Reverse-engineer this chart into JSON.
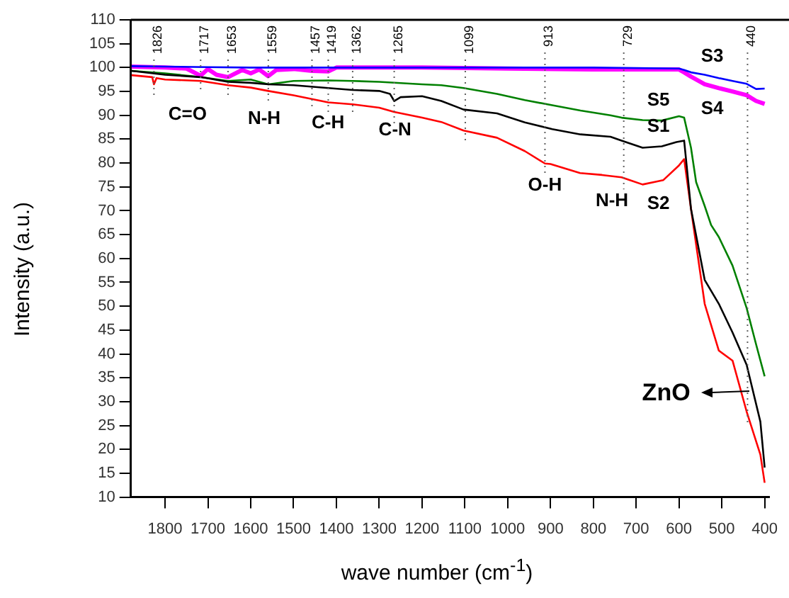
{
  "chart_data": {
    "type": "line",
    "xlabel": "wave number (cm$^{-1}$)",
    "ylabel": "Intensity (a.u.)",
    "xlim": [
      1880,
      390
    ],
    "xticks": [
      1800,
      1700,
      1600,
      1500,
      1400,
      1300,
      1200,
      1100,
      1000,
      900,
      800,
      700,
      600,
      500,
      400
    ],
    "ylim": [
      10,
      110
    ],
    "yticks": [
      10,
      15,
      20,
      25,
      30,
      35,
      40,
      45,
      50,
      55,
      60,
      65,
      70,
      75,
      80,
      85,
      90,
      95,
      100,
      105,
      110
    ],
    "grid": false,
    "legend": false,
    "marker": "none",
    "line_style": "solid",
    "series": [
      {
        "name": "S1",
        "color": "#000000",
        "x": [
          1878,
          1800,
          1717,
          1653,
          1600,
          1559,
          1500,
          1419,
          1362,
          1300,
          1275,
          1265,
          1250,
          1200,
          1155,
          1103,
          1025,
          960,
          896,
          830,
          760,
          734,
          685,
          640,
          606,
          588,
          572,
          540,
          507,
          475,
          442,
          410,
          400
        ],
        "values": [
          99.3,
          98.5,
          98,
          97,
          96.8,
          96.5,
          96.3,
          95.7,
          95.3,
          95.1,
          94.5,
          93,
          93.8,
          94,
          93,
          91.2,
          90.4,
          88.5,
          87.1,
          86,
          85.5,
          84.7,
          83.2,
          83.5,
          84.4,
          84.7,
          70.4,
          55.5,
          50.5,
          44.5,
          37.7,
          25.8,
          16.2
        ]
      },
      {
        "name": "S2",
        "color": "#ff0000",
        "x": [
          1878,
          1830,
          1826,
          1820,
          1800,
          1717,
          1653,
          1600,
          1559,
          1500,
          1419,
          1362,
          1300,
          1265,
          1200,
          1155,
          1103,
          1025,
          960,
          913,
          900,
          831,
          780,
          734,
          685,
          637,
          600,
          588,
          572,
          540,
          507,
          475,
          442,
          410,
          400
        ],
        "values": [
          98.4,
          98,
          96.5,
          97.8,
          97.5,
          97.2,
          96.3,
          95.8,
          95.1,
          94.2,
          92.7,
          92.3,
          91.6,
          90.7,
          89.5,
          88.6,
          86.8,
          85.3,
          82.5,
          79.9,
          79.8,
          77.9,
          77.5,
          77,
          75.5,
          76.4,
          79.5,
          80.8,
          70.4,
          50.5,
          40.7,
          38.6,
          27.9,
          18.9,
          13
        ]
      },
      {
        "name": "S3",
        "color": "#0000ff",
        "x": [
          1878,
          1800,
          1700,
          1600,
          1500,
          1400,
          1300,
          1200,
          1000,
          800,
          600,
          588,
          572,
          540,
          507,
          475,
          442,
          420,
          400
        ],
        "values": [
          100.3,
          100.2,
          100.1,
          100,
          100,
          100,
          100,
          100,
          100,
          100,
          99.8,
          99.5,
          99,
          98.5,
          97.8,
          97.2,
          96.6,
          95.5,
          95.6
        ]
      },
      {
        "name": "S4",
        "color": "#ff00ff",
        "x": [
          1878,
          1800,
          1750,
          1717,
          1700,
          1680,
          1653,
          1620,
          1600,
          1580,
          1559,
          1540,
          1500,
          1457,
          1419,
          1400,
          1300,
          1200,
          1000,
          800,
          600,
          588,
          572,
          540,
          507,
          475,
          442,
          420,
          400
        ],
        "values": [
          100.2,
          100,
          99.8,
          98.3,
          99.7,
          98.5,
          98,
          99.5,
          98.8,
          99.6,
          98.2,
          99.5,
          99.7,
          99.3,
          99.2,
          100,
          100,
          100,
          99.8,
          99.6,
          99.6,
          99,
          98.1,
          96.5,
          95.7,
          95,
          94.2,
          93,
          92.4
        ]
      },
      {
        "name": "S5",
        "color": "#008000",
        "x": [
          1878,
          1800,
          1717,
          1653,
          1600,
          1559,
          1500,
          1419,
          1362,
          1300,
          1200,
          1155,
          1103,
          1025,
          960,
          896,
          830,
          760,
          734,
          685,
          640,
          600,
          588,
          572,
          560,
          540,
          525,
          507,
          475,
          442,
          420,
          400
        ],
        "values": [
          99.3,
          98.8,
          98,
          97.2,
          97.5,
          96.5,
          97.2,
          97.3,
          97.2,
          97,
          96.5,
          96.3,
          95.7,
          94.5,
          93.2,
          92.1,
          91,
          90,
          89.5,
          89,
          88.9,
          89.8,
          89.5,
          83.2,
          76,
          71,
          67,
          64.5,
          58.5,
          49.6,
          42,
          35.3
        ]
      }
    ],
    "ref_lines": [
      {
        "axis": "x",
        "value": 1826,
        "label": "1826",
        "color": "#606060",
        "line_style": "dotted"
      },
      {
        "axis": "x",
        "value": 1717,
        "label": "1717",
        "color": "#606060",
        "line_style": "dotted"
      },
      {
        "axis": "x",
        "value": 1653,
        "label": "1653",
        "color": "#606060",
        "line_style": "dotted"
      },
      {
        "axis": "x",
        "value": 1559,
        "label": "1559",
        "color": "#606060",
        "line_style": "dotted"
      },
      {
        "axis": "x",
        "value": 1457,
        "label": "1457",
        "color": "#606060",
        "line_style": "dotted"
      },
      {
        "axis": "x",
        "value": 1419,
        "label": "1419",
        "color": "#606060",
        "line_style": "dotted"
      },
      {
        "axis": "x",
        "value": 1362,
        "label": "1362",
        "color": "#606060",
        "line_style": "dotted"
      },
      {
        "axis": "x",
        "value": 1265,
        "label": "1265",
        "color": "#606060",
        "line_style": "dotted"
      },
      {
        "axis": "x",
        "value": 1099,
        "label": "1099",
        "color": "#606060",
        "line_style": "dotted"
      },
      {
        "axis": "x",
        "value": 913,
        "label": "913",
        "color": "#606060",
        "line_style": "dotted"
      },
      {
        "axis": "x",
        "value": 729,
        "label": "729",
        "color": "#606060",
        "line_style": "dotted"
      },
      {
        "axis": "x",
        "value": 440,
        "label": "440",
        "color": "#606060",
        "line_style": "dotted"
      }
    ],
    "annotations": [
      "C=O",
      "N-H",
      "C-H",
      "C-N",
      "O-H",
      "N-H",
      "ZnO"
    ]
  }
}
